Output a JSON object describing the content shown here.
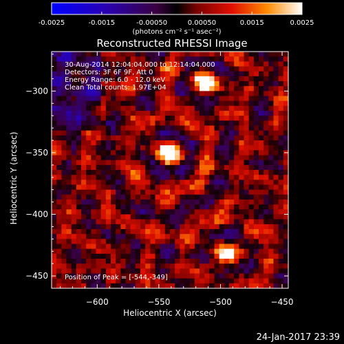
{
  "chart_data": {
    "type": "heatmap",
    "title": "Reconstructed RHESSI Image",
    "colorbar": {
      "ticks": [
        "-0.0025",
        "-0.0015",
        "-0.00050",
        "0.00050",
        "0.0015",
        "0.0025"
      ],
      "range": [
        -0.0025,
        0.0025
      ],
      "unit_label": "(photons cm⁻² s⁻¹ asec⁻²)"
    },
    "xlabel": "Heliocentric X (arcsec)",
    "ylabel": "Heliocentric Y (arcsec)",
    "xlim": [
      -637,
      -445
    ],
    "ylim": [
      -460,
      -268
    ],
    "xticks": [
      -600,
      -550,
      -500,
      -450
    ],
    "yticks": [
      -300,
      -350,
      -400,
      -450
    ],
    "xtick_labels": [
      "−600",
      "−550",
      "−500",
      "−450"
    ],
    "ytick_labels": [
      "−300",
      "−350",
      "−400",
      "−450"
    ],
    "info_lines": [
      "30-Aug-2014 12:04:04.000 to 12:14:04.000",
      "Detectors: 3F 6F 9F, Att 0",
      "Energy Range: 6.0 - 12.0 keV",
      "Clean    Total counts: 1.97E+04"
    ],
    "peak_label": "Position of Peak = [-544,-349]",
    "peaks": [
      {
        "x": -544,
        "y": -349,
        "value": 0.0025
      },
      {
        "x": -514,
        "y": -291,
        "value": 0.0022
      },
      {
        "x": -497,
        "y": -430,
        "value": 0.0021
      }
    ],
    "colors": {
      "background": "#000000",
      "text": "#ffffff"
    }
  },
  "footer": {
    "timestamp": "24-Jan-2017 23:39"
  }
}
